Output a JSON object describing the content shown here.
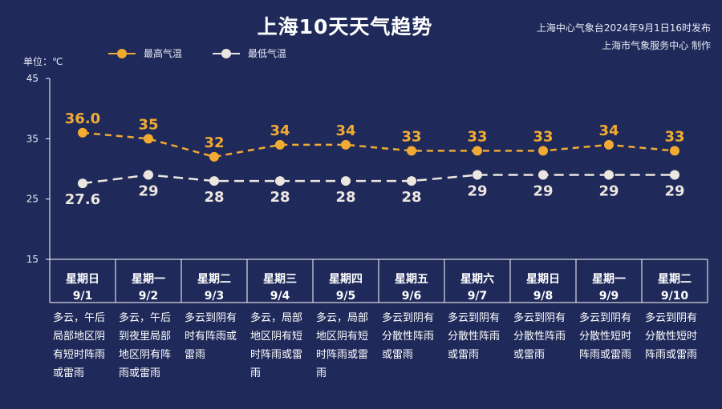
{
  "header": {
    "title": "上海10天天气趋势",
    "source_line1": "上海中心气象台2024年9月1日16时发布",
    "source_line2": "上海市气象服务中心 制作"
  },
  "unit_label": "单位：℃",
  "colors": {
    "background": "#202a5a",
    "high": "#f1aa32",
    "low": "#ece6e0",
    "axis": "#ffffff"
  },
  "legend": [
    {
      "name": "最高气温",
      "color": "#f1aa32"
    },
    {
      "name": "最低气温",
      "color": "#ece6e0"
    }
  ],
  "chart_data": {
    "type": "line",
    "title": "上海10天天气趋势",
    "ylabel": "单位：℃",
    "ylim": [
      15,
      45
    ],
    "yticks": [
      15,
      25,
      35,
      45
    ],
    "grid": false,
    "legend_position": "top-left",
    "categories": [
      "9/1",
      "9/2",
      "9/3",
      "9/4",
      "9/5",
      "9/6",
      "9/7",
      "9/8",
      "9/9",
      "9/10"
    ],
    "series": [
      {
        "name": "最高气温",
        "values": [
          36.0,
          35,
          32,
          34,
          34,
          33,
          33,
          33,
          34,
          33
        ],
        "labels": [
          "36.0",
          "35",
          "32",
          "34",
          "34",
          "33",
          "33",
          "33",
          "34",
          "33"
        ]
      },
      {
        "name": "最低气温",
        "values": [
          27.6,
          29,
          28,
          28,
          28,
          28,
          29,
          29,
          29,
          29
        ],
        "labels": [
          "27.6",
          "29",
          "28",
          "28",
          "28",
          "28",
          "29",
          "29",
          "29",
          "29"
        ]
      }
    ]
  },
  "days": [
    {
      "weekday": "星期日",
      "date": "9/1",
      "weather": "多云，午后局部地区阴有短时阵雨或雷雨"
    },
    {
      "weekday": "星期一",
      "date": "9/2",
      "weather": "多云，午后到夜里局部地区阴有阵雨或雷雨"
    },
    {
      "weekday": "星期二",
      "date": "9/3",
      "weather": "多云到阴有时有阵雨或雷雨"
    },
    {
      "weekday": "星期三",
      "date": "9/4",
      "weather": "多云，局部地区阴有短时阵雨或雷雨"
    },
    {
      "weekday": "星期四",
      "date": "9/5",
      "weather": "多云，局部地区阴有短时阵雨或雷雨"
    },
    {
      "weekday": "星期五",
      "date": "9/6",
      "weather": "多云到阴有分散性阵雨或雷雨"
    },
    {
      "weekday": "星期六",
      "date": "9/7",
      "weather": "多云到阴有分散性阵雨或雷雨"
    },
    {
      "weekday": "星期日",
      "date": "9/8",
      "weather": "多云到阴有分散性阵雨或雷雨"
    },
    {
      "weekday": "星期一",
      "date": "9/9",
      "weather": "多云到阴有分散性短时阵雨或雷雨"
    },
    {
      "weekday": "星期二",
      "date": "9/10",
      "weather": "多云到阴有分散性短时阵雨或雷雨"
    }
  ]
}
